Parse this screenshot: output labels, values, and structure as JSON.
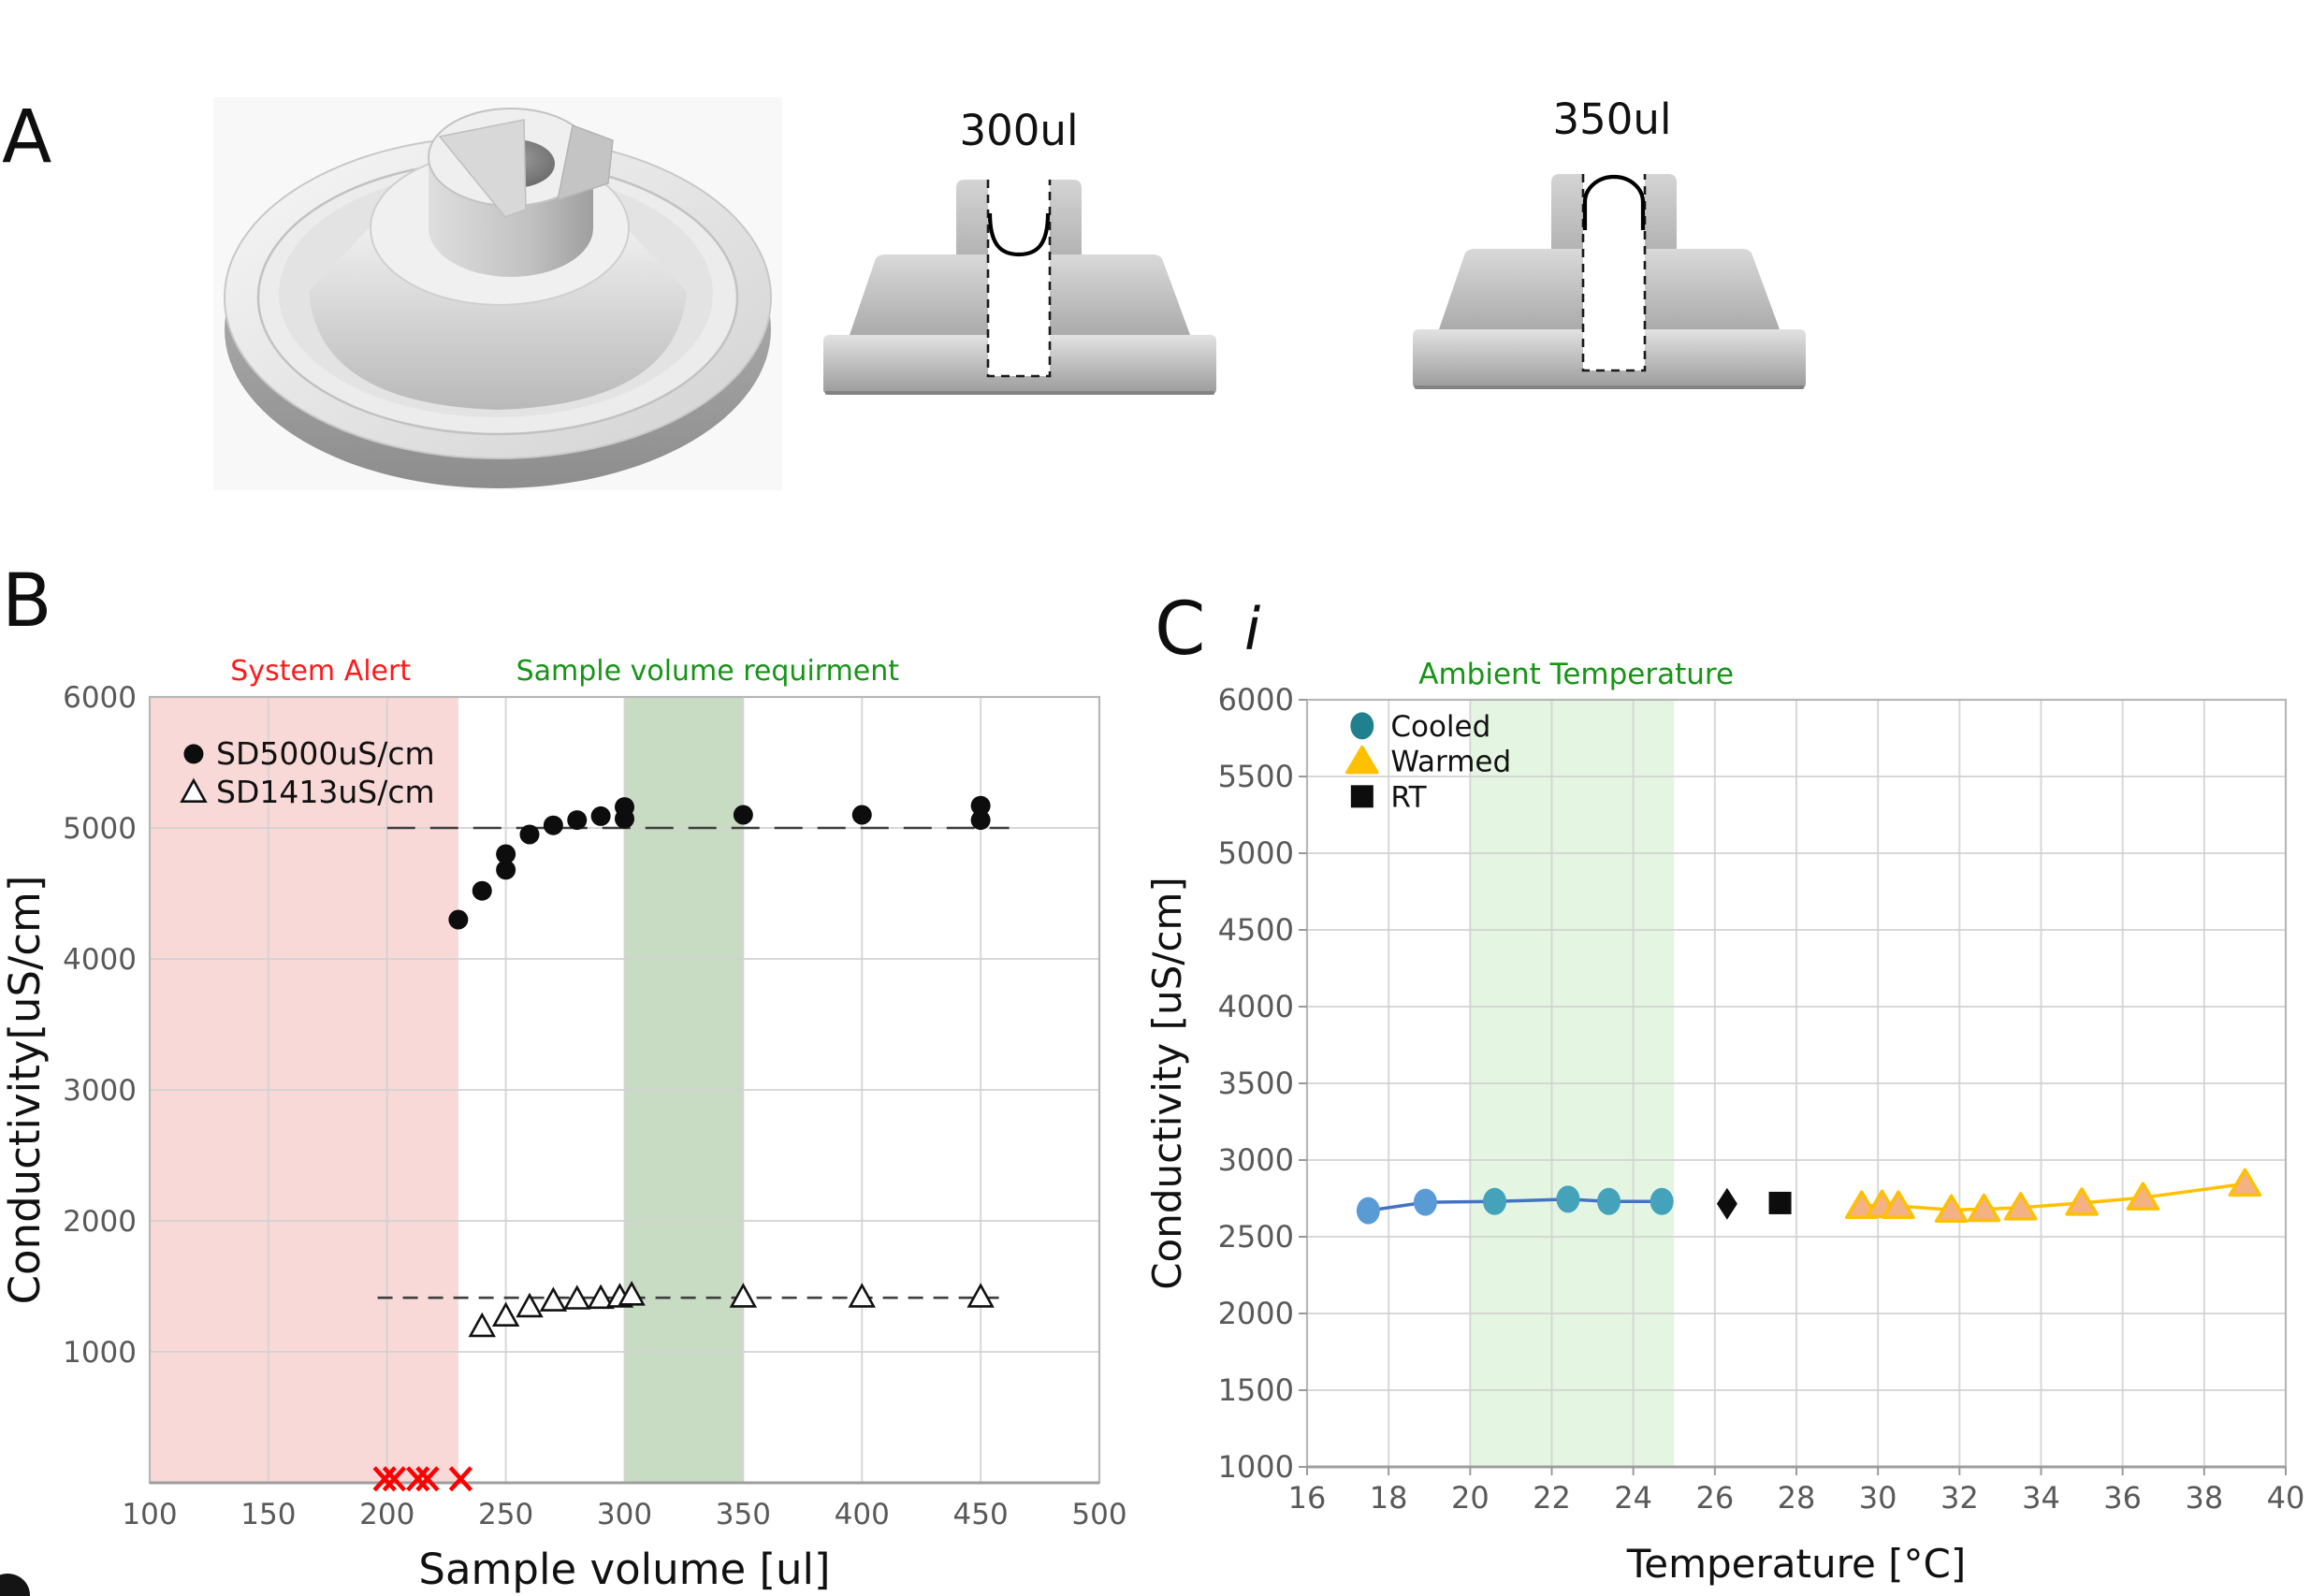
{
  "figure": {
    "panel_a_label": "A",
    "panel_b_label": "B",
    "panel_c_label": "C",
    "panel_c_sub_label": "i"
  },
  "panel_a": {
    "render_name": "sample-port-3d-render",
    "cross_sections": [
      {
        "label": "300ul",
        "meniscus": "concave"
      },
      {
        "label": "350ul",
        "meniscus": "convex"
      }
    ]
  },
  "chart_data": [
    {
      "id": "B",
      "type": "scatter",
      "xlabel": "Sample volume [ul]",
      "ylabel": "Conductivity[uS/cm]",
      "xlim": [
        100,
        500
      ],
      "ylim": [
        0,
        6000
      ],
      "xticks": [
        100,
        150,
        200,
        250,
        300,
        350,
        400,
        450,
        500
      ],
      "yticks": [
        1000,
        2000,
        3000,
        4000,
        5000,
        6000
      ],
      "grid": true,
      "regions": [
        {
          "name": "system-alert-region",
          "x0": 100,
          "x1": 230,
          "color": "#f8d9d8"
        },
        {
          "name": "sample-volume-requirement-region",
          "x0": 300,
          "x1": 350,
          "color": "#c8dcc3"
        }
      ],
      "annotations": [
        {
          "name": "system-alert-label",
          "text": "System Alert",
          "color": "#ff1a1a",
          "x": 172
        },
        {
          "name": "sample-volume-requirement-label",
          "text": "Sample volume requirment",
          "color": "#169416",
          "x": 335
        }
      ],
      "reference_lines": [
        {
          "name": "ref-5000",
          "y": 5000,
          "x0": 200,
          "x1": 462,
          "dash": "30 16",
          "color": "#3d3d3d"
        },
        {
          "name": "ref-1413",
          "y": 1413,
          "x0": 196,
          "x1": 462,
          "dash": "16 11",
          "color": "#3d3d3d"
        }
      ],
      "legend": {
        "items": [
          {
            "marker": "circle-filled",
            "label": "SD5000uS/cm",
            "mx": 118.5,
            "tx": 128,
            "y": 5565
          },
          {
            "marker": "triangle-open",
            "label": "SD1413uS/cm",
            "mx": 118.5,
            "tx": 128,
            "y": 5270
          }
        ]
      },
      "series": [
        {
          "name": "SD5000uS/cm",
          "marker": "circle-filled",
          "points": [
            [
              230,
              4300
            ],
            [
              240,
              4520
            ],
            [
              250,
              4680
            ],
            [
              250,
              4800
            ],
            [
              260,
              4950
            ],
            [
              270,
              5020
            ],
            [
              280,
              5060
            ],
            [
              290,
              5090
            ],
            [
              300,
              5070
            ],
            [
              300,
              5160
            ],
            [
              350,
              5100
            ],
            [
              400,
              5100
            ],
            [
              450,
              5060
            ],
            [
              450,
              5170
            ]
          ]
        },
        {
          "name": "SD1413uS/cm",
          "marker": "triangle-open",
          "points": [
            [
              240,
              1190
            ],
            [
              250,
              1270
            ],
            [
              260,
              1340
            ],
            [
              270,
              1385
            ],
            [
              280,
              1400
            ],
            [
              290,
              1405
            ],
            [
              298,
              1415
            ],
            [
              303,
              1430
            ],
            [
              350,
              1415
            ],
            [
              400,
              1415
            ],
            [
              450,
              1415
            ]
          ]
        },
        {
          "name": "system-alert-failures",
          "marker": "x-red",
          "color": "#fe0000",
          "points": [
            [
              199,
              30
            ],
            [
              203,
              30
            ],
            [
              213,
              30
            ],
            [
              217,
              30
            ],
            [
              231,
              30
            ]
          ]
        }
      ]
    },
    {
      "id": "C",
      "type": "scatter-line",
      "title": "Ambient Temperature",
      "title_color": "#169416",
      "title_x": 22.6,
      "xlabel": "Temperature [°C]",
      "ylabel": "Conductivity [uS/cm]",
      "xlim": [
        16,
        40
      ],
      "ylim": [
        1000,
        6000
      ],
      "xticks": [
        16,
        18,
        20,
        22,
        24,
        26,
        28,
        30,
        32,
        34,
        36,
        38,
        40
      ],
      "yticks": [
        1000,
        1500,
        2000,
        2500,
        3000,
        3500,
        4000,
        4500,
        5000,
        5500,
        6000
      ],
      "grid": true,
      "regions": [
        {
          "name": "ambient-temperature-region",
          "x0": 20,
          "x1": 25,
          "color": "#e4f6e1"
        }
      ],
      "annotations": [],
      "reference_lines": [],
      "legend": {
        "items": [
          {
            "marker": "dot",
            "fill": "#21808d",
            "label": "Cooled",
            "mx": 17.35,
            "tx": 18.05,
            "y": 5830
          },
          {
            "marker": "triangle-gold",
            "fill": "#ffc000",
            "stroke": "#ffc000",
            "label": "Warmed",
            "mx": 17.35,
            "tx": 18.05,
            "y": 5600
          },
          {
            "marker": "square",
            "fill": "#0d0d0d",
            "label": "RT",
            "mx": 17.35,
            "tx": 18.05,
            "y": 5370
          }
        ]
      },
      "series": [
        {
          "name": "Cooled",
          "marker": "dot",
          "line": {
            "color": "#4472c4",
            "width": 3.5
          },
          "marker_colors": [
            "#5b9bd5",
            "#5b9bd5",
            "#44a3bb",
            "#44a3bb",
            "#44a3bb",
            "#44a3bb"
          ],
          "points": [
            [
              17.5,
              2670
            ],
            [
              18.9,
              2725
            ],
            [
              20.6,
              2730
            ],
            [
              22.4,
              2745
            ],
            [
              23.4,
              2730
            ],
            [
              24.7,
              2730
            ]
          ]
        },
        {
          "name": "Warmed",
          "marker": "triangle-gold",
          "line": {
            "color": "#ffc000",
            "width": 3.5
          },
          "points": [
            [
              29.6,
              2700
            ],
            [
              30.1,
              2705
            ],
            [
              30.5,
              2700
            ],
            [
              31.8,
              2675
            ],
            [
              32.6,
              2680
            ],
            [
              33.5,
              2690
            ],
            [
              35.0,
              2720
            ],
            [
              36.5,
              2755
            ],
            [
              39.0,
              2845
            ]
          ]
        },
        {
          "name": "RT-diamond",
          "marker": "diamond",
          "points": [
            [
              26.3,
              2715
            ]
          ]
        },
        {
          "name": "RT",
          "marker": "square",
          "points": [
            [
              27.6,
              2720
            ]
          ]
        }
      ]
    }
  ]
}
